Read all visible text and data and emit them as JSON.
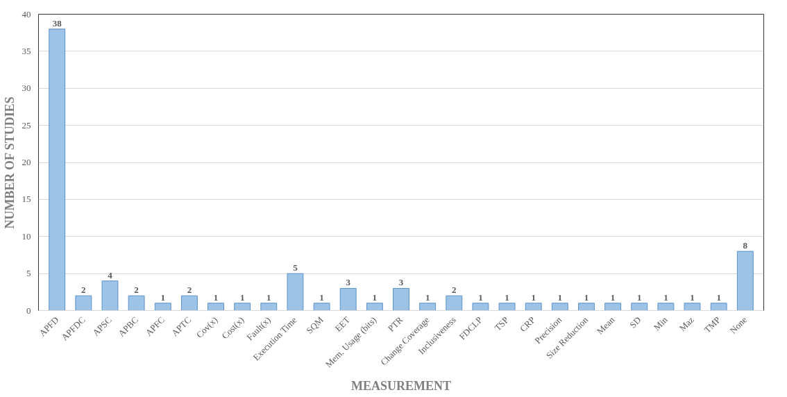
{
  "chart_data": {
    "type": "bar",
    "xlabel": "MEASUREMENT",
    "ylabel": "NUMBER OF STUDIES",
    "categories": [
      "APFD",
      "APFDC",
      "APSC",
      "APBC",
      "APFC",
      "APTC",
      "Cov(x)",
      "Cost(x)",
      "Fault(x)",
      "Execution Time",
      "SQM",
      "EET",
      "Mem. Usage (bits)",
      "PTR",
      "Change Coverage",
      "Inclusiveness",
      "FDCLP",
      "TSP",
      "CRP",
      "Precision",
      "Size Reduction",
      "Mean",
      "SD",
      "Min",
      "Maz",
      "TMP",
      "None"
    ],
    "values": [
      38,
      2,
      4,
      2,
      1,
      2,
      1,
      1,
      1,
      5,
      1,
      3,
      1,
      3,
      1,
      2,
      1,
      1,
      1,
      1,
      1,
      1,
      1,
      1,
      1,
      1,
      8
    ],
    "color": "#9dc3e6",
    "ylim": [
      0,
      40
    ],
    "yticks": [
      0,
      5,
      10,
      15,
      20,
      25,
      30,
      35,
      40
    ],
    "grid": "y",
    "data_labels": true
  }
}
